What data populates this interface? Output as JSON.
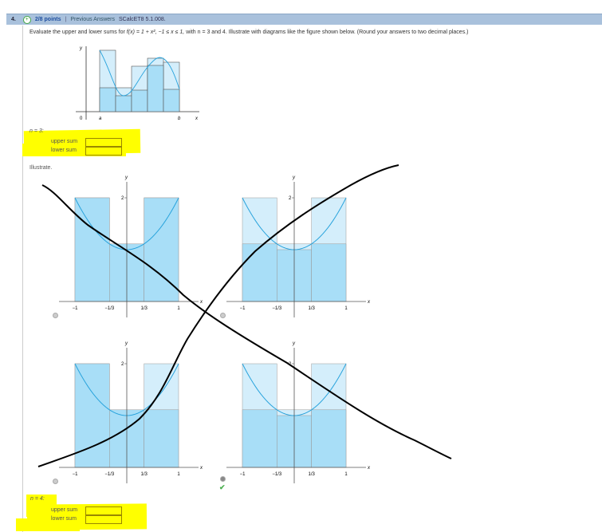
{
  "header": {
    "number": "4.",
    "points": "2/8 points",
    "separator": "|",
    "previous": "Previous Answers",
    "reference": "SCalcET8 5.1.008."
  },
  "question": {
    "text_before": "Evaluate the upper and lower sums for ",
    "function": "f(x) = 1 + x², −1 ≤ x ≤ 1,",
    "text_after": " with n = 3 and 4. Illustrate with diagrams like the figure shown below. (Round your answers to two decimal places.)"
  },
  "example_figure": {
    "y_label": "y",
    "x_label": "x",
    "origin_label": "0",
    "a_label": "a",
    "b_label": "b"
  },
  "n3": {
    "label": "n = 3:",
    "upper_label": "upper sum",
    "lower_label": "lower sum",
    "upper_value": "",
    "lower_value": ""
  },
  "illustrate_label": "Illustrate.",
  "graphs": {
    "y_label": "y",
    "x_label": "x",
    "y_tick": "2",
    "x_ticks": [
      "−1",
      "−1/3",
      "1/3",
      "1"
    ],
    "options": [
      {
        "dark": [
          2,
          1.111,
          2
        ],
        "light": [
          2,
          1.111,
          2
        ],
        "selected": false
      },
      {
        "dark": [
          1.111,
          1,
          1.111
        ],
        "light": [
          2,
          1.111,
          2
        ],
        "selected": false
      },
      {
        "dark": [
          2,
          1.111,
          1.111
        ],
        "light": [
          2,
          1.111,
          2
        ],
        "selected": false
      },
      {
        "dark": [
          1.111,
          1,
          1.111
        ],
        "light": [
          2,
          1.111,
          2
        ],
        "selected": true
      }
    ]
  },
  "status": {
    "correct_icon": "checkmark-icon",
    "correct_color": "#4caf50"
  },
  "n4": {
    "label": "n = 4:",
    "upper_label": "upper sum",
    "lower_label": "lower sum",
    "upper_value": "",
    "lower_value": ""
  }
}
